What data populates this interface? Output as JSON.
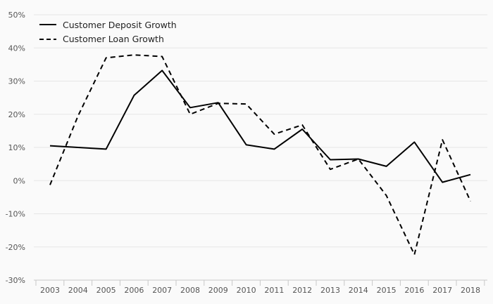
{
  "chart_data": {
    "type": "line",
    "title": "",
    "xlabel": "",
    "ylabel": "",
    "x": [
      "2003",
      "2004",
      "2005",
      "2006",
      "2007",
      "2008",
      "2009",
      "2010",
      "2011",
      "2012",
      "2013",
      "2014",
      "2015",
      "2016",
      "2017",
      "2018"
    ],
    "y_ticks": [
      "50%",
      "40%",
      "30%",
      "20%",
      "10%",
      "0%",
      "-10%",
      "-20%",
      "-30%"
    ],
    "ylim": [
      -30,
      50
    ],
    "grid": "horizontal",
    "legend_position": "top-left",
    "series": [
      {
        "name": "Customer Deposit Growth",
        "style": "solid",
        "color": "#000000",
        "values": [
          10.5,
          10.0,
          9.5,
          25.7,
          33.2,
          22.0,
          23.5,
          10.8,
          9.5,
          15.5,
          6.3,
          6.5,
          4.3,
          11.6,
          -0.5,
          1.8
        ]
      },
      {
        "name": "Customer Loan Growth",
        "style": "dashed",
        "color": "#000000",
        "values": [
          -1.3,
          19.5,
          37.0,
          37.9,
          37.4,
          20.0,
          23.3,
          23.1,
          14.0,
          16.8,
          3.4,
          6.5,
          -4.5,
          -22.3,
          12.3,
          -6.2
        ]
      }
    ]
  }
}
